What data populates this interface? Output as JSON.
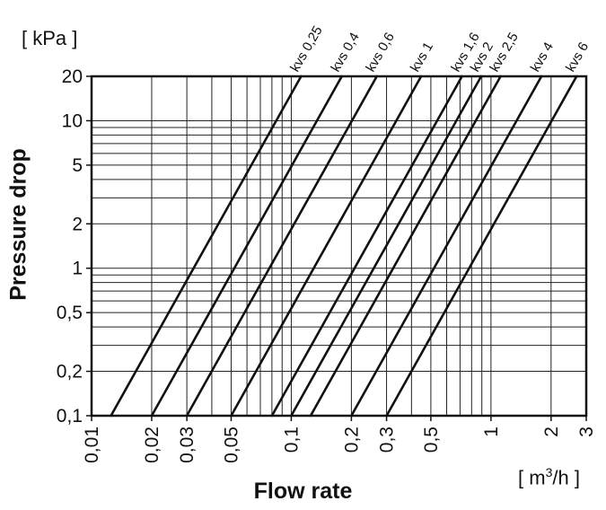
{
  "chart_data": {
    "type": "line",
    "x_scale": "log",
    "y_scale": "log",
    "xlim": [
      0.01,
      3
    ],
    "ylim": [
      0.1,
      20
    ],
    "grid": true,
    "xlabel": "Flow rate",
    "ylabel": "Pressure drop",
    "x_unit": {
      "prefix": "[ m",
      "sup": "3",
      "suffix": "/h ]"
    },
    "y_unit": "[ kPa ]",
    "x_ticks": [
      0.01,
      0.02,
      0.03,
      0.05,
      0.1,
      0.2,
      0.3,
      0.5,
      1,
      2,
      3
    ],
    "x_tick_labels": [
      "0,01",
      "0,02",
      "0,03",
      "0,05",
      "0,1",
      "0,2",
      "0,3",
      "0,5",
      "1",
      "2",
      "3"
    ],
    "y_ticks": [
      0.1,
      0.2,
      0.5,
      1,
      2,
      5,
      10,
      20
    ],
    "y_tick_labels": [
      "0,1",
      "0,2",
      "0,5",
      "1",
      "2",
      "5",
      "10",
      "20"
    ],
    "series": [
      {
        "name": "kvs 0,25",
        "kvs": 0.25,
        "x": [
          0.0125,
          0.112
        ],
        "y": [
          0.1,
          20
        ]
      },
      {
        "name": "kvs 0,4",
        "kvs": 0.4,
        "x": [
          0.02,
          0.179
        ],
        "y": [
          0.1,
          20
        ]
      },
      {
        "name": "kvs 0,6",
        "kvs": 0.6,
        "x": [
          0.03,
          0.268
        ],
        "y": [
          0.1,
          20
        ]
      },
      {
        "name": "kvs 1",
        "kvs": 1,
        "x": [
          0.05,
          0.447
        ],
        "y": [
          0.1,
          20
        ]
      },
      {
        "name": "kvs 1,6",
        "kvs": 1.6,
        "x": [
          0.08,
          0.716
        ],
        "y": [
          0.1,
          20
        ]
      },
      {
        "name": "kvs 2",
        "kvs": 2,
        "x": [
          0.1,
          0.894
        ],
        "y": [
          0.1,
          20
        ]
      },
      {
        "name": "kvs 2,5",
        "kvs": 2.5,
        "x": [
          0.125,
          1.118
        ],
        "y": [
          0.1,
          20
        ]
      },
      {
        "name": "kvs 4",
        "kvs": 4,
        "x": [
          0.2,
          1.789
        ],
        "y": [
          0.1,
          20
        ]
      },
      {
        "name": "kvs 6",
        "kvs": 6,
        "x": [
          0.3,
          2.683
        ],
        "y": [
          0.1,
          20
        ]
      }
    ]
  }
}
